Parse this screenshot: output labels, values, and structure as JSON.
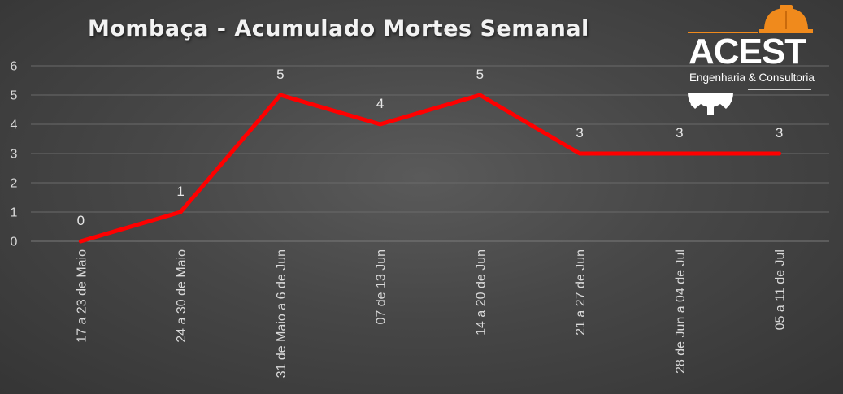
{
  "chart_data": {
    "type": "line",
    "title": "Mombaça - Acumulado Mortes Semanal",
    "categories": [
      "17 a 23 de Maio",
      "24 a 30 de Maio",
      "31 de Maio a 6 de Jun",
      "07 de 13 Jun",
      "14 a 20 de Jun",
      "21 a 27 de Jun",
      "28 de Jun a 04 de Jul",
      "05 a 11 de Jul"
    ],
    "series": [
      {
        "values": [
          0,
          1,
          5,
          4,
          5,
          3,
          3,
          3
        ],
        "color": "#ff0000"
      }
    ],
    "yticks": [
      0,
      1,
      2,
      3,
      4,
      5,
      6
    ],
    "ylim": [
      0,
      6
    ],
    "grid": true,
    "data_labels": true,
    "xlabel": "",
    "ylabel": ""
  },
  "logo": {
    "name": "ACEST",
    "tagline": "Engenharia & Consultoria",
    "accent_color": "#f08a1c"
  }
}
